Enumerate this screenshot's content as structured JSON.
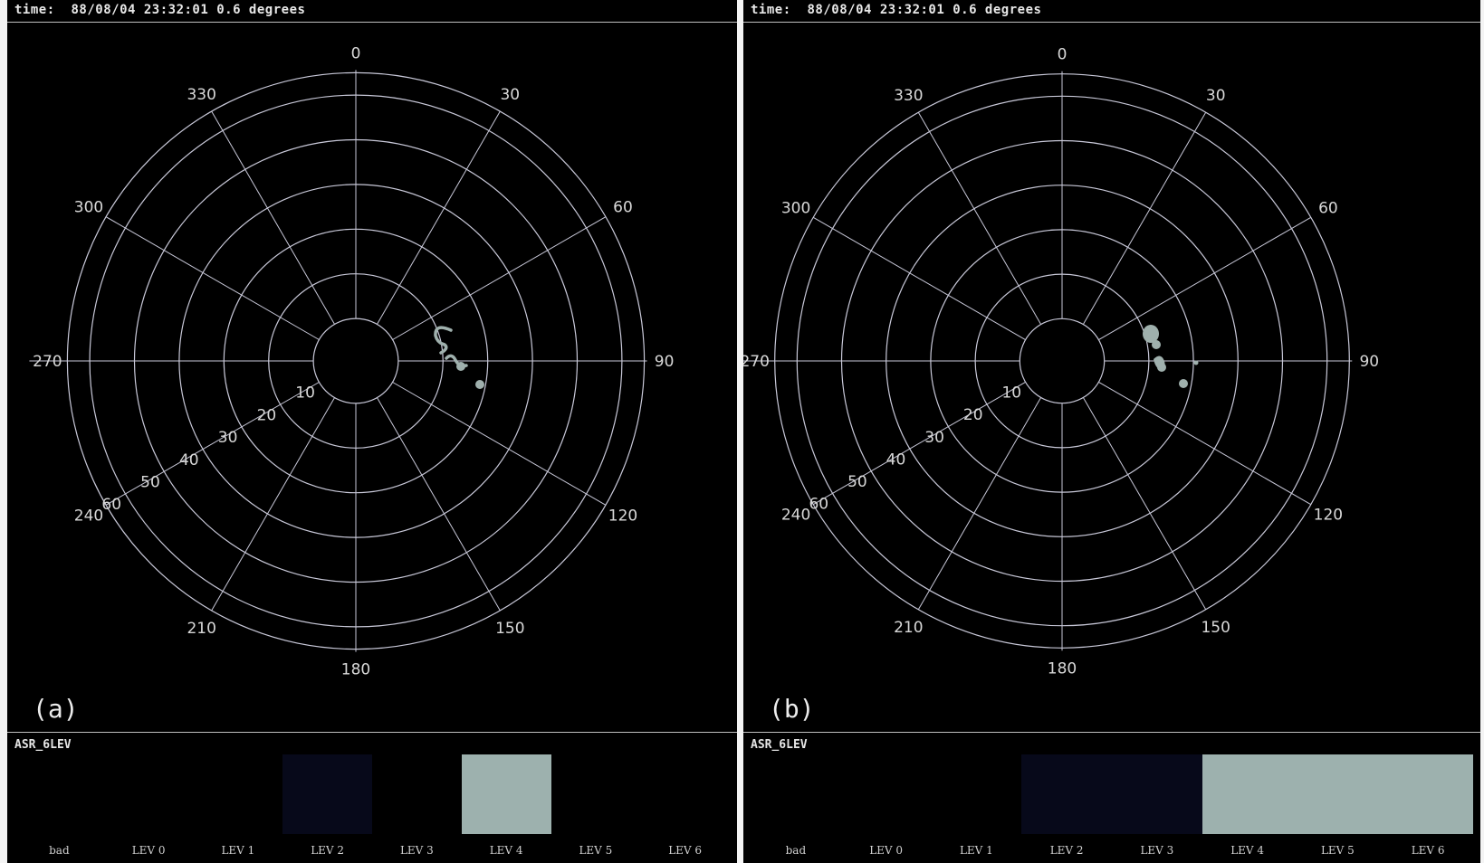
{
  "colors": {
    "background": "#000000",
    "grid": "#c8c8d8",
    "echo": "#9fb0ad",
    "legend_dark": "#07091a",
    "legend_light": "#9db1ae"
  },
  "panels": [
    {
      "id": "a",
      "time": "time:  88/08/04 23:32:01 0.6 degrees",
      "label": "(a)",
      "legend_title": "ASR_6LEV",
      "legend_levels": [
        "bad",
        "LEV 0",
        "LEV 1",
        "LEV 2",
        "LEV 3",
        "LEV 4",
        "LEV 5",
        "LEV 6"
      ],
      "legend_shading": [
        "none",
        "none",
        "none",
        "dark",
        "none",
        "light",
        "none",
        "none"
      ]
    },
    {
      "id": "b",
      "time": "time:  88/08/04 23:32:01 0.6 degrees",
      "label": "(b)",
      "legend_title": "ASR_6LEV",
      "legend_levels": [
        "bad",
        "LEV 0",
        "LEV 1",
        "LEV 2",
        "LEV 3",
        "LEV 4",
        "LEV 5",
        "LEV 6"
      ],
      "legend_shading": [
        "none",
        "none",
        "none",
        "dark",
        "dark",
        "light",
        "light",
        "light"
      ]
    }
  ],
  "polar": {
    "azimuth_labels": [
      "0",
      "30",
      "60",
      "90",
      "120",
      "150",
      "180",
      "210",
      "240",
      "270",
      "300",
      "330"
    ],
    "range_labels": [
      "10",
      "20",
      "30",
      "40",
      "50",
      "60"
    ]
  }
}
